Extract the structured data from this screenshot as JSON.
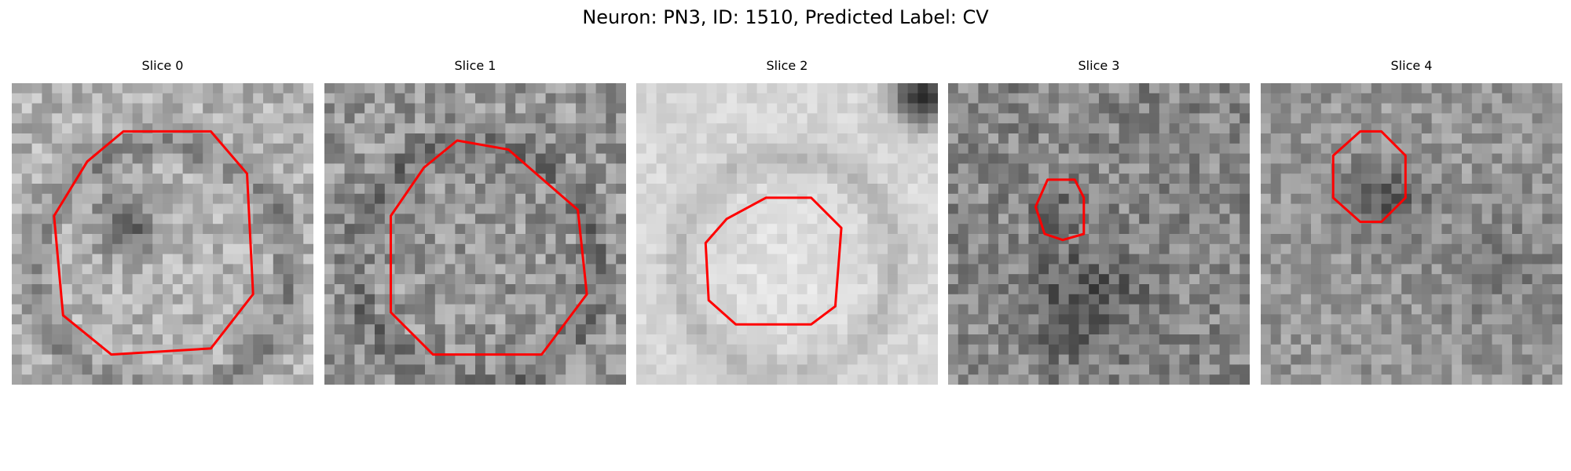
{
  "figure": {
    "title": "Neuron: PN3, ID: 1510, Predicted Label: CV"
  },
  "slices": [
    {
      "title": "Slice 0",
      "base_gray": 178,
      "contour_color": "#ff0000"
    },
    {
      "title": "Slice 1",
      "base_gray": 150,
      "contour_color": "#ff0000"
    },
    {
      "title": "Slice 2",
      "base_gray": 215,
      "contour_color": "#ff0000"
    },
    {
      "title": "Slice 3",
      "base_gray": 135,
      "contour_color": "#ff0000"
    },
    {
      "title": "Slice 4",
      "base_gray": 150,
      "contour_color": "#ff0000"
    }
  ],
  "colors": {
    "background": "#ffffff",
    "contour": "#ff0000"
  }
}
